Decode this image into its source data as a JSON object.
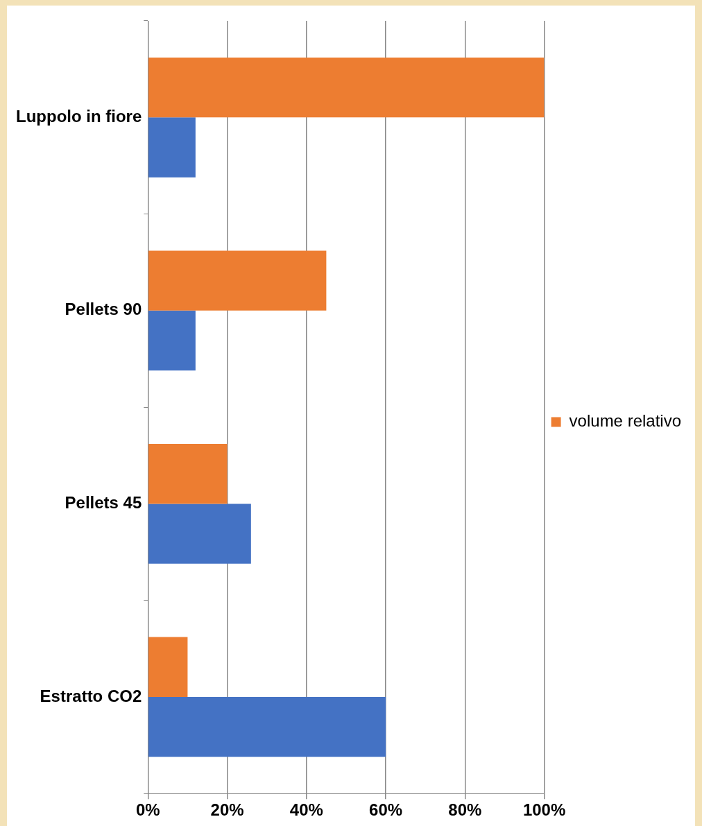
{
  "chart_data": {
    "type": "bar",
    "orientation": "horizontal",
    "categories": [
      "Luppolo in fiore",
      "Pellets 90",
      "Pellets 45",
      "Estratto CO2"
    ],
    "series": [
      {
        "name": "volume relativo",
        "color": "#ed7d31",
        "values": [
          100,
          45,
          20,
          10
        ]
      },
      {
        "color": "#4472c4",
        "values": [
          12,
          12,
          26,
          60
        ]
      }
    ],
    "xlim": [
      0,
      100
    ],
    "xticks": [
      {
        "value": 0,
        "label": "0%"
      },
      {
        "value": 20,
        "label": "20%"
      },
      {
        "value": 40,
        "label": "40%"
      },
      {
        "value": 60,
        "label": "60%"
      },
      {
        "value": 80,
        "label": "80%"
      },
      {
        "value": 100,
        "label": "100%"
      }
    ],
    "grid": "x",
    "legend": "right"
  }
}
